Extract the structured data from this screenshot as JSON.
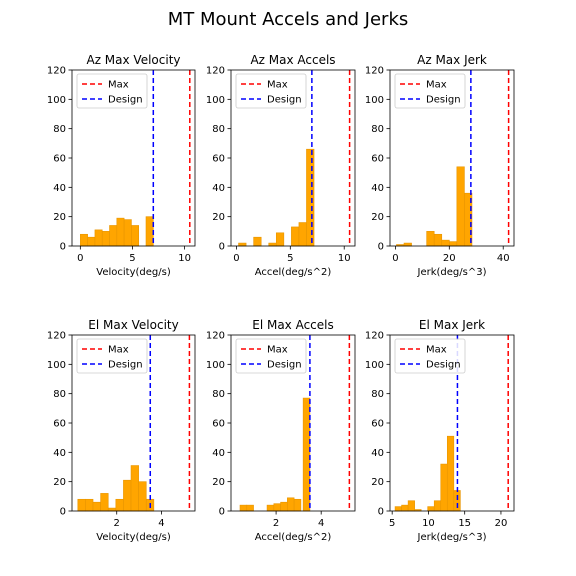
{
  "figure": {
    "title": "MT Mount Accels and Jerks"
  },
  "colors": {
    "bar": "#ffa500",
    "bar_edge": "#e89500",
    "max_line": "#ff0000",
    "design_line": "#0000ff",
    "frame": "#000000"
  },
  "chart_data": [
    {
      "type": "bar",
      "title": "Az Max Velocity",
      "xlabel": "Velocity(deg/s)",
      "ylabel": "",
      "xlim": [
        -0.8,
        11.0
      ],
      "ylim": [
        0,
        120
      ],
      "xticks": [
        0,
        5,
        10
      ],
      "yticks": [
        0,
        20,
        40,
        60,
        80,
        100,
        120
      ],
      "bins": [
        {
          "x0": 0.0,
          "x1": 0.7,
          "count": 8
        },
        {
          "x0": 0.7,
          "x1": 1.4,
          "count": 6
        },
        {
          "x0": 1.4,
          "x1": 2.1,
          "count": 11
        },
        {
          "x0": 2.1,
          "x1": 2.8,
          "count": 10
        },
        {
          "x0": 2.8,
          "x1": 3.5,
          "count": 14
        },
        {
          "x0": 3.5,
          "x1": 4.2,
          "count": 19
        },
        {
          "x0": 4.2,
          "x1": 4.9,
          "count": 18
        },
        {
          "x0": 4.9,
          "x1": 5.6,
          "count": 14
        },
        {
          "x0": 5.6,
          "x1": 6.3,
          "count": 0
        },
        {
          "x0": 6.3,
          "x1": 7.0,
          "count": 20
        }
      ],
      "lines": [
        {
          "name": "Max",
          "x": 10.5,
          "color": "#ff0000"
        },
        {
          "name": "Design",
          "x": 7.0,
          "color": "#0000ff"
        }
      ],
      "legend": "upper left"
    },
    {
      "type": "bar",
      "title": "Az Max Accels",
      "xlabel": "Accel(deg/s^2)",
      "ylabel": "",
      "xlim": [
        -0.5,
        11.0
      ],
      "ylim": [
        0,
        120
      ],
      "xticks": [
        0,
        5,
        10
      ],
      "yticks": [
        0,
        20,
        40,
        60,
        80,
        100,
        120
      ],
      "bins": [
        {
          "x0": 0.2,
          "x1": 0.9,
          "count": 2
        },
        {
          "x0": 0.9,
          "x1": 1.6,
          "count": 0
        },
        {
          "x0": 1.6,
          "x1": 2.3,
          "count": 6
        },
        {
          "x0": 2.3,
          "x1": 3.0,
          "count": 0
        },
        {
          "x0": 3.0,
          "x1": 3.7,
          "count": 2
        },
        {
          "x0": 3.7,
          "x1": 4.4,
          "count": 9
        },
        {
          "x0": 4.4,
          "x1": 5.1,
          "count": 0
        },
        {
          "x0": 5.1,
          "x1": 5.8,
          "count": 13
        },
        {
          "x0": 5.8,
          "x1": 6.5,
          "count": 16
        },
        {
          "x0": 6.5,
          "x1": 7.2,
          "count": 66
        }
      ],
      "lines": [
        {
          "name": "Max",
          "x": 10.5,
          "color": "#ff0000"
        },
        {
          "name": "Design",
          "x": 7.0,
          "color": "#0000ff"
        }
      ],
      "legend": "upper left"
    },
    {
      "type": "bar",
      "title": "Az Max Jerk",
      "xlabel": "Jerk(deg/s^3)",
      "ylabel": "",
      "xlim": [
        -2.0,
        44.0
      ],
      "ylim": [
        0,
        120
      ],
      "xticks": [
        0,
        20,
        40
      ],
      "yticks": [
        0,
        20,
        40,
        60,
        80,
        100,
        120
      ],
      "bins": [
        {
          "x0": 0.4,
          "x1": 3.2,
          "count": 1
        },
        {
          "x0": 3.2,
          "x1": 6.0,
          "count": 2
        },
        {
          "x0": 6.0,
          "x1": 8.8,
          "count": 0
        },
        {
          "x0": 8.8,
          "x1": 11.6,
          "count": 0
        },
        {
          "x0": 11.6,
          "x1": 14.4,
          "count": 10
        },
        {
          "x0": 14.4,
          "x1": 17.2,
          "count": 8
        },
        {
          "x0": 17.2,
          "x1": 20.0,
          "count": 4
        },
        {
          "x0": 20.0,
          "x1": 22.8,
          "count": 3
        },
        {
          "x0": 22.8,
          "x1": 25.6,
          "count": 54
        },
        {
          "x0": 25.6,
          "x1": 28.4,
          "count": 36
        }
      ],
      "lines": [
        {
          "name": "Max",
          "x": 42.0,
          "color": "#ff0000"
        },
        {
          "name": "Design",
          "x": 28.0,
          "color": "#0000ff"
        }
      ],
      "legend": "upper left"
    },
    {
      "type": "bar",
      "title": "El Max Velocity",
      "xlabel": "Velocity(deg/s)",
      "ylabel": "",
      "xlim": [
        0.0,
        5.5
      ],
      "ylim": [
        0,
        120
      ],
      "xticks": [
        2,
        4
      ],
      "yticks": [
        0,
        20,
        40,
        60,
        80,
        100,
        120
      ],
      "bins": [
        {
          "x0": 0.26,
          "x1": 0.6,
          "count": 8
        },
        {
          "x0": 0.6,
          "x1": 0.94,
          "count": 8
        },
        {
          "x0": 0.94,
          "x1": 1.28,
          "count": 6
        },
        {
          "x0": 1.28,
          "x1": 1.62,
          "count": 12
        },
        {
          "x0": 1.62,
          "x1": 1.96,
          "count": 2
        },
        {
          "x0": 1.96,
          "x1": 2.3,
          "count": 8
        },
        {
          "x0": 2.3,
          "x1": 2.64,
          "count": 21
        },
        {
          "x0": 2.64,
          "x1": 2.98,
          "count": 31
        },
        {
          "x0": 2.98,
          "x1": 3.32,
          "count": 20
        },
        {
          "x0": 3.32,
          "x1": 3.66,
          "count": 8
        }
      ],
      "lines": [
        {
          "name": "Max",
          "x": 5.25,
          "color": "#ff0000"
        },
        {
          "name": "Design",
          "x": 3.5,
          "color": "#0000ff"
        }
      ],
      "legend": "upper left"
    },
    {
      "type": "bar",
      "title": "El Max Accels",
      "xlabel": "Accel(deg/s^2)",
      "ylabel": "",
      "xlim": [
        0.0,
        5.5
      ],
      "ylim": [
        0,
        120
      ],
      "xticks": [
        2,
        4
      ],
      "yticks": [
        0,
        20,
        40,
        60,
        80,
        100,
        120
      ],
      "bins": [
        {
          "x0": 0.4,
          "x1": 0.7,
          "count": 4
        },
        {
          "x0": 0.7,
          "x1": 1.0,
          "count": 4
        },
        {
          "x0": 1.0,
          "x1": 1.3,
          "count": 0
        },
        {
          "x0": 1.3,
          "x1": 1.6,
          "count": 0
        },
        {
          "x0": 1.6,
          "x1": 1.9,
          "count": 4
        },
        {
          "x0": 1.9,
          "x1": 2.2,
          "count": 5
        },
        {
          "x0": 2.2,
          "x1": 2.5,
          "count": 6
        },
        {
          "x0": 2.5,
          "x1": 2.8,
          "count": 9
        },
        {
          "x0": 2.8,
          "x1": 3.1,
          "count": 8
        },
        {
          "x0": 3.2,
          "x1": 3.5,
          "count": 77
        }
      ],
      "lines": [
        {
          "name": "Max",
          "x": 5.25,
          "color": "#ff0000"
        },
        {
          "name": "Design",
          "x": 3.5,
          "color": "#0000ff"
        }
      ],
      "legend": "upper left"
    },
    {
      "type": "bar",
      "title": "El Max Jerk",
      "xlabel": "Jerk(deg/s^3)",
      "ylabel": "",
      "xlim": [
        4.7,
        21.8
      ],
      "ylim": [
        0,
        120
      ],
      "xticks": [
        5,
        10,
        15,
        20
      ],
      "yticks": [
        0,
        20,
        40,
        60,
        80,
        100,
        120
      ],
      "bins": [
        {
          "x0": 5.4,
          "x1": 6.3,
          "count": 3
        },
        {
          "x0": 6.3,
          "x1": 7.2,
          "count": 4
        },
        {
          "x0": 7.2,
          "x1": 8.1,
          "count": 7
        },
        {
          "x0": 8.1,
          "x1": 9.0,
          "count": 1
        },
        {
          "x0": 9.0,
          "x1": 9.9,
          "count": 0
        },
        {
          "x0": 9.9,
          "x1": 10.8,
          "count": 3
        },
        {
          "x0": 10.8,
          "x1": 11.7,
          "count": 7
        },
        {
          "x0": 11.7,
          "x1": 12.6,
          "count": 32
        },
        {
          "x0": 12.6,
          "x1": 13.5,
          "count": 51
        },
        {
          "x0": 13.5,
          "x1": 14.4,
          "count": 14
        }
      ],
      "lines": [
        {
          "name": "Max",
          "x": 21.0,
          "color": "#ff0000"
        },
        {
          "name": "Design",
          "x": 14.0,
          "color": "#0000ff"
        }
      ],
      "legend": "upper left"
    }
  ]
}
